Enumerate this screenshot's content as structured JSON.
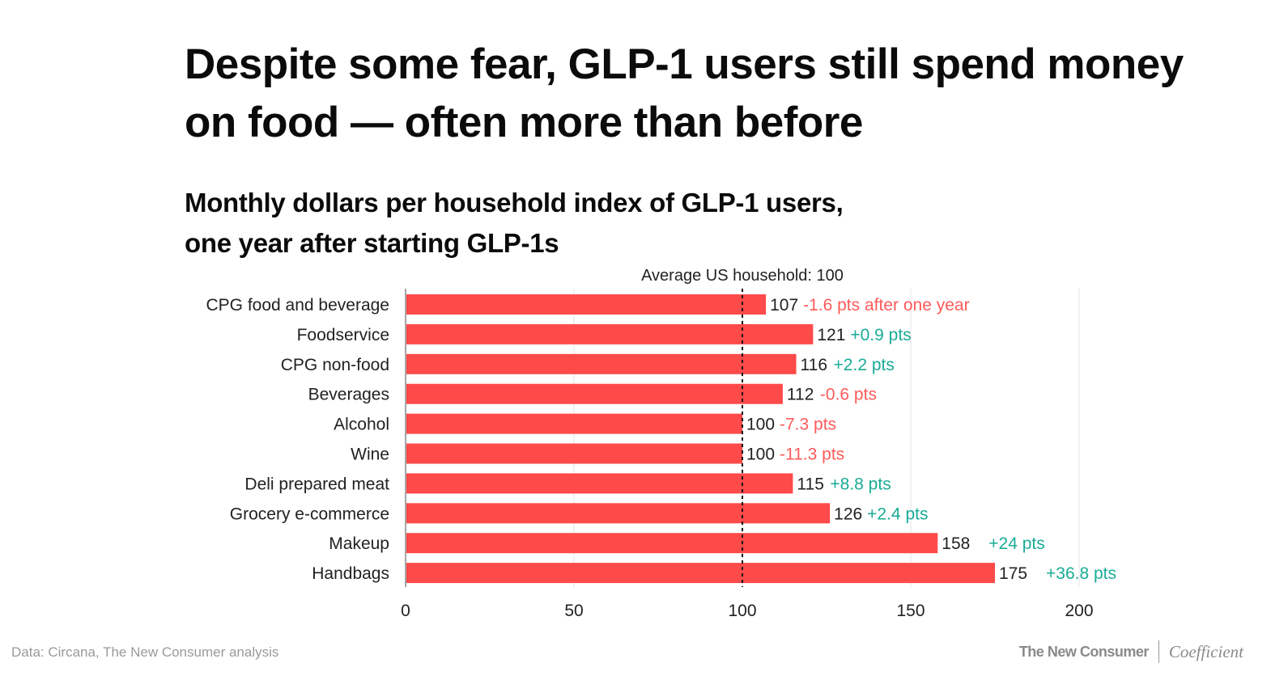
{
  "title": "Despite some fear, GLP-1 users still spend money on food — often more than before",
  "subtitle_line1": "Monthly dollars per household index of GLP-1 users,",
  "subtitle_line2": "one year after starting GLP-1s",
  "footer": {
    "source": "Data: Circana, The New Consumer analysis",
    "brand_primary": "The New Consumer",
    "brand_secondary": "Coefficient"
  },
  "colors": {
    "bar": "#ff4a4a",
    "positive": "#1aab96",
    "negative": "#ff5a5a"
  },
  "chart_data": {
    "type": "bar",
    "orientation": "horizontal",
    "title": "Monthly dollars per household index of GLP-1 users, one year after starting GLP-1s",
    "xlabel": "",
    "ylabel": "",
    "xlim": [
      0,
      200
    ],
    "xticks": [
      0,
      50,
      100,
      150,
      200
    ],
    "grid": true,
    "reference_line": {
      "value": 100,
      "label": "Average US household: 100"
    },
    "categories": [
      "CPG food and beverage",
      "Foodservice",
      "CPG non-food",
      "Beverages",
      "Alcohol",
      "Wine",
      "Deli prepared meat",
      "Grocery e-commerce",
      "Makeup",
      "Handbags"
    ],
    "values": [
      107,
      121,
      116,
      112,
      100,
      100,
      115,
      126,
      158,
      175
    ],
    "change_labels": [
      "-1.6 pts after one year",
      "+0.9 pts",
      "+2.2 pts",
      "-0.6 pts",
      "-7.3 pts",
      "-11.3 pts",
      "+8.8 pts",
      "+2.4 pts",
      "+24 pts",
      "+36.8 pts"
    ],
    "change_values": [
      -1.6,
      0.9,
      2.2,
      -0.6,
      -7.3,
      -11.3,
      8.8,
      2.4,
      24,
      36.8
    ]
  }
}
